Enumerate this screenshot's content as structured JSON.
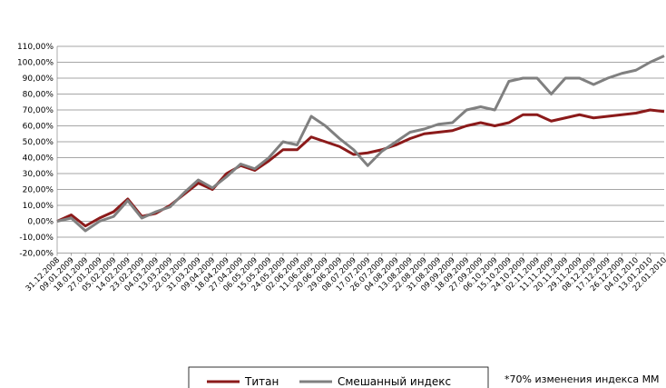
{
  "chart_data": {
    "type": "line",
    "categories": [
      "31.12.2008",
      "09.01.2009",
      "18.01.2009",
      "27.01.2009",
      "05.02.2009",
      "14.02.2009",
      "23.02.2009",
      "04.03.2009",
      "13.03.2009",
      "22.03.2009",
      "31.03.2009",
      "09.04.2009",
      "18.04.2009",
      "27.04.2009",
      "06.05.2009",
      "15.05.2009",
      "24.05.2009",
      "02.06.2009",
      "11.06.2009",
      "20.06.2009",
      "29.06.2009",
      "08.07.2009",
      "17.07.2009",
      "26.07.2009",
      "04.08.2009",
      "13.08.2009",
      "22.08.2009",
      "31.08.2009",
      "09.09.2009",
      "18.09.2009",
      "27.09.2009",
      "06.10.2009",
      "15.10.2009",
      "24.10.2009",
      "02.11.2009",
      "11.11.2009",
      "20.11.2009",
      "29.11.2009",
      "08.12.2009",
      "17.12.2009",
      "26.12.2009",
      "04.01.2010",
      "13.01.2010",
      "22.01.2010"
    ],
    "series": [
      {
        "name": "Титан",
        "color": "#8b1a1a",
        "values": [
          0,
          4,
          -3,
          2,
          6,
          14,
          3,
          5,
          10,
          17,
          24,
          20,
          30,
          35,
          32,
          38,
          45,
          45,
          53,
          50,
          47,
          42,
          43,
          45,
          48,
          52,
          55,
          56,
          57,
          60,
          62,
          60,
          62,
          67,
          67,
          63,
          65,
          67,
          65,
          66,
          67,
          68,
          70,
          69
        ]
      },
      {
        "name": "Смешанный индекс",
        "color": "#808080",
        "values": [
          0,
          2,
          -6,
          0,
          3,
          13,
          2,
          6,
          9,
          18,
          26,
          21,
          28,
          36,
          33,
          40,
          50,
          48,
          66,
          60,
          52,
          45,
          35,
          44,
          50,
          56,
          58,
          61,
          62,
          70,
          72,
          70,
          88,
          90,
          90,
          80,
          90,
          90,
          86,
          90,
          93,
          95,
          100,
          104
        ]
      }
    ],
    "ylim": [
      -20,
      110
    ],
    "yticks": [
      {
        "value": -20,
        "label": "-20,00%"
      },
      {
        "value": -10,
        "label": "-10,00%"
      },
      {
        "value": 0,
        "label": "0,00%"
      },
      {
        "value": 10,
        "label": "10,00%"
      },
      {
        "value": 20,
        "label": "20,00%"
      },
      {
        "value": 30,
        "label": "30,00%"
      },
      {
        "value": 40,
        "label": "40,00%"
      },
      {
        "value": 50,
        "label": "50,00%"
      },
      {
        "value": 60,
        "label": "60,00%"
      },
      {
        "value": 70,
        "label": "70,00%"
      },
      {
        "value": 80,
        "label": "80,00%"
      },
      {
        "value": 90,
        "label": "90,00%"
      },
      {
        "value": 100,
        "label": "100,00%"
      },
      {
        "value": 110,
        "label": "110,00%"
      }
    ],
    "grid": true,
    "legend": "bottom",
    "footnote": "*70% изменения индекса ММ"
  }
}
